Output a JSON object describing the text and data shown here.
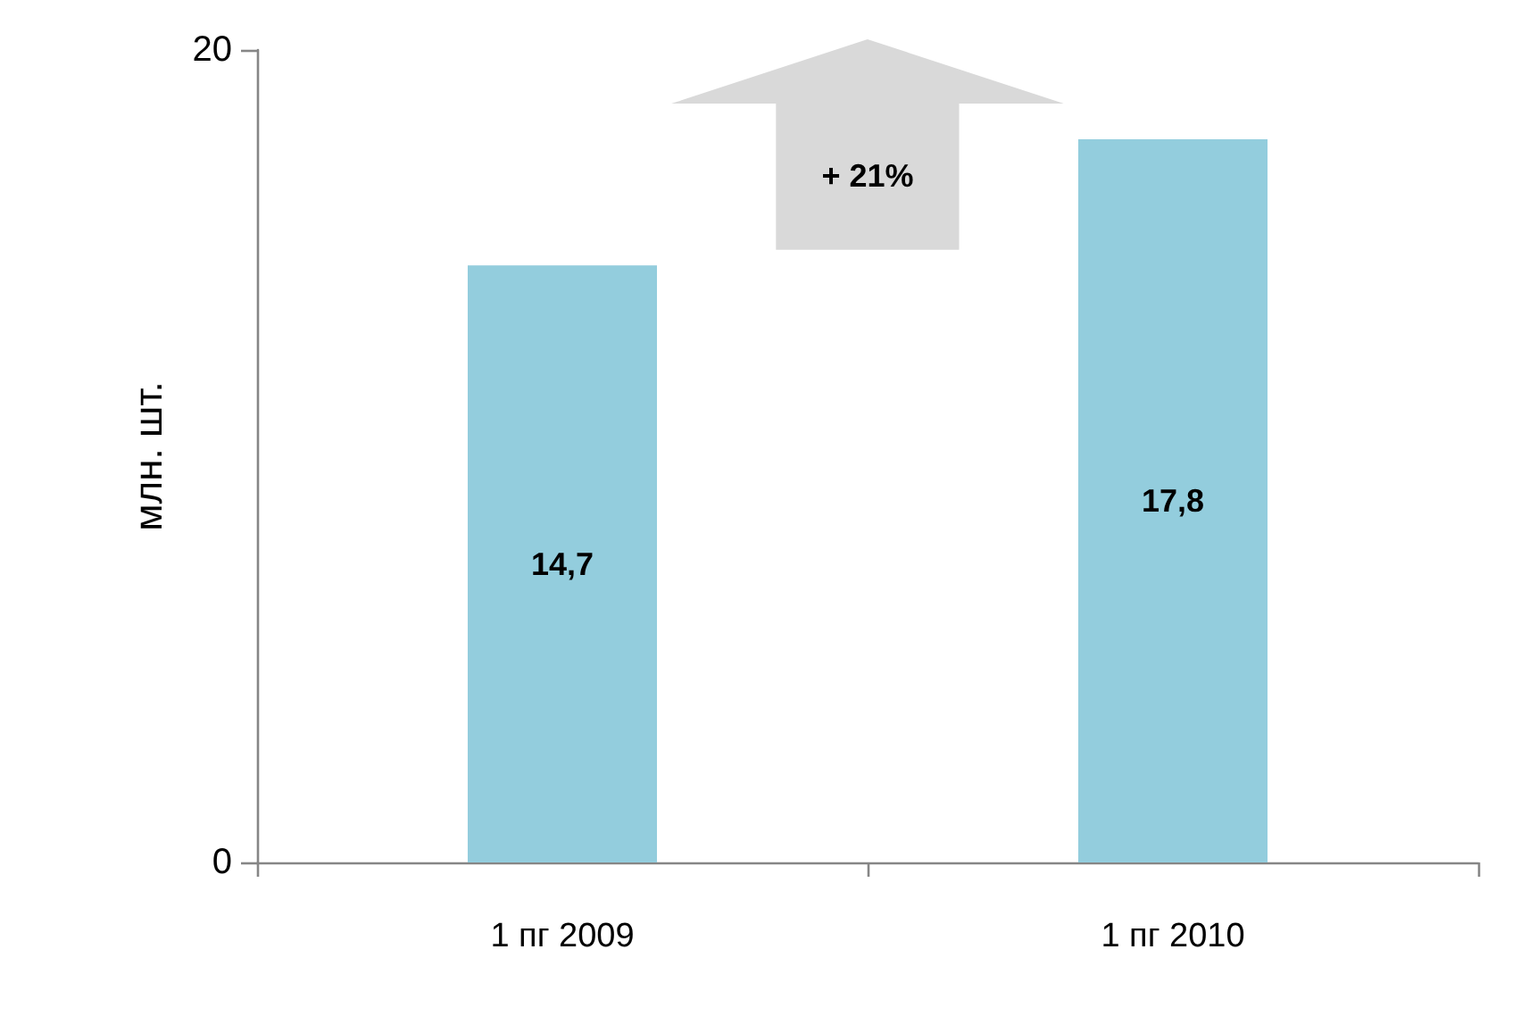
{
  "chart_data": {
    "type": "bar",
    "ylabel": "млн. шт.",
    "categories": [
      "1 пг 2009",
      "1 пг 2010"
    ],
    "values": [
      14.7,
      17.8
    ],
    "color": "#93cddd",
    "value_labels": [
      "14,7",
      "17,8"
    ],
    "ylim": [
      0,
      20
    ],
    "yticks": [
      0,
      20
    ],
    "annotations": [
      "+ 21%"
    ]
  }
}
